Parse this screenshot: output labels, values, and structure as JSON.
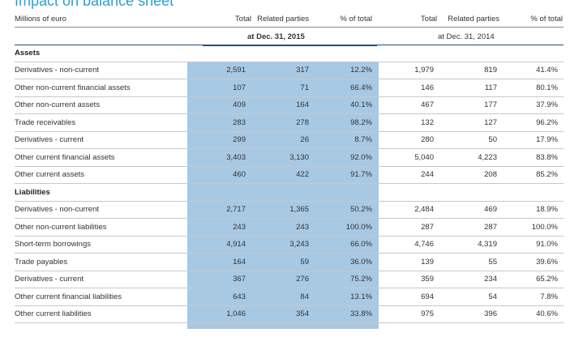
{
  "title": "Impact on balance sheet",
  "header": {
    "unit_label": "Millions of euro",
    "columns": [
      "Total",
      "Related parties",
      "% of total",
      "Total",
      "Related parties",
      "% of total"
    ],
    "period_2015": "at Dec. 31, 2015",
    "period_2014": "at Dec. 31, 2014"
  },
  "sections": [
    {
      "label": "Assets",
      "rows": [
        {
          "label": "Derivatives - non-current",
          "t15": "2,591",
          "rp15": "317",
          "p15": "12.2%",
          "t14": "1,979",
          "rp14": "819",
          "p14": "41.4%"
        },
        {
          "label": "Other non-current financial assets",
          "t15": "107",
          "rp15": "71",
          "p15": "66.4%",
          "t14": "146",
          "rp14": "117",
          "p14": "80.1%"
        },
        {
          "label": "Other non-current assets",
          "t15": "409",
          "rp15": "164",
          "p15": "40.1%",
          "t14": "467",
          "rp14": "177",
          "p14": "37.9%"
        },
        {
          "label": "Trade receivables",
          "t15": "283",
          "rp15": "278",
          "p15": "98.2%",
          "t14": "132",
          "rp14": "127",
          "p14": "96.2%"
        },
        {
          "label": "Derivatives - current",
          "t15": "299",
          "rp15": "26",
          "p15": "8.7%",
          "t14": "280",
          "rp14": "50",
          "p14": "17.9%"
        },
        {
          "label": "Other current financial assets",
          "t15": "3,403",
          "rp15": "3,130",
          "p15": "92.0%",
          "t14": "5,040",
          "rp14": "4,223",
          "p14": "83.8%"
        },
        {
          "label": "Other current assets",
          "t15": "460",
          "rp15": "422",
          "p15": "91.7%",
          "t14": "244",
          "rp14": "208",
          "p14": "85.2%"
        }
      ]
    },
    {
      "label": "Liabilities",
      "rows": [
        {
          "label": "Derivatives - non-current",
          "t15": "2,717",
          "rp15": "1,365",
          "p15": "50.2%",
          "t14": "2,484",
          "rp14": "469",
          "p14": "18.9%"
        },
        {
          "label": "Other non-current liabilities",
          "t15": "243",
          "rp15": "243",
          "p15": "100.0%",
          "t14": "287",
          "rp14": "287",
          "p14": "100.0%"
        },
        {
          "label": "Short-term borrowings",
          "t15": "4,914",
          "rp15": "3,243",
          "p15": "66.0%",
          "t14": "4,746",
          "rp14": "4,319",
          "p14": "91.0%"
        },
        {
          "label": "Trade payables",
          "t15": "164",
          "rp15": "59",
          "p15": "36.0%",
          "t14": "139",
          "rp14": "55",
          "p14": "39.6%"
        },
        {
          "label": "Derivatives - current",
          "t15": "367",
          "rp15": "276",
          "p15": "75.2%",
          "t14": "359",
          "rp14": "234",
          "p14": "65.2%"
        },
        {
          "label": "Other current financial liabilities",
          "t15": "643",
          "rp15": "84",
          "p15": "13.1%",
          "t14": "694",
          "rp14": "54",
          "p14": "7.8%"
        },
        {
          "label": "Other current liabilities",
          "t15": "1,046",
          "rp15": "354",
          "p15": "33.8%",
          "t14": "975",
          "rp14": "396",
          "p14": "40.6%"
        }
      ]
    }
  ],
  "colors": {
    "title": "#2a9fd8",
    "highlight": "#a7c9e4",
    "rule_dark": "#1f4e79",
    "rule_light": "#c8c8c8"
  }
}
